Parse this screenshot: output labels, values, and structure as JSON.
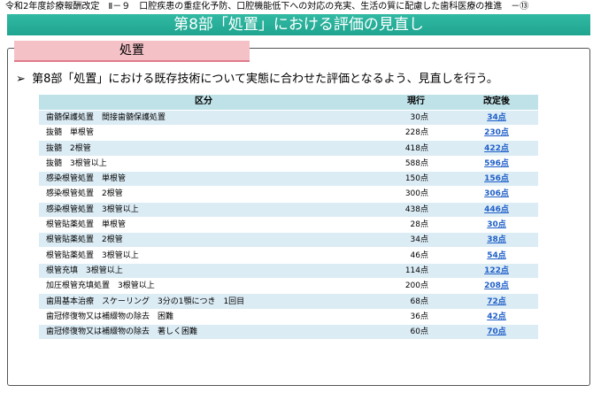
{
  "header": {
    "caption": "令和2年度診療報酬改定　Ⅱ－９　口腔疾患の重症化予防、口腔機能低下への対応の充実、生活の質に配慮した歯科医療の推進　－⑬",
    "title": "第8部「処置」における評価の見直し"
  },
  "section": {
    "label": "処置"
  },
  "lead": {
    "bullet": "➢",
    "text": "第8部「処置」における既存技術について実態に合わせた評価となるよう、見直しを行う。"
  },
  "table": {
    "headers": [
      "区分",
      "現行",
      "改定後"
    ],
    "rows": [
      {
        "name": "歯髄保護処置　間接歯髄保護処置",
        "current": "30点",
        "revised": "34点"
      },
      {
        "name": "抜髄　単根管",
        "current": "228点",
        "revised": "230点"
      },
      {
        "name": "抜髄　2根管",
        "current": "418点",
        "revised": "422点"
      },
      {
        "name": "抜髄　3根管以上",
        "current": "588点",
        "revised": "596点"
      },
      {
        "name": "感染根管処置　単根管",
        "current": "150点",
        "revised": "156点"
      },
      {
        "name": "感染根管処置　2根管",
        "current": "300点",
        "revised": "306点"
      },
      {
        "name": "感染根管処置　3根管以上",
        "current": "438点",
        "revised": "446点"
      },
      {
        "name": "根管貼薬処置　単根管",
        "current": "28点",
        "revised": "30点"
      },
      {
        "name": "根管貼薬処置　2根管",
        "current": "34点",
        "revised": "38点"
      },
      {
        "name": "根管貼薬処置　3根管以上",
        "current": "46点",
        "revised": "54点"
      },
      {
        "name": "根管充填　3根管以上",
        "current": "114点",
        "revised": "122点"
      },
      {
        "name": "加圧根管充填処置　3根管以上",
        "current": "200点",
        "revised": "208点"
      },
      {
        "name": "歯周基本治療　スケーリング　3分の1顎につき　1回目",
        "current": "68点",
        "revised": "72点"
      },
      {
        "name": "歯冠修復物又は補綴物の除去　困難",
        "current": "36点",
        "revised": "42点"
      },
      {
        "name": "歯冠修復物又は補綴物の除去　著しく困難",
        "current": "60点",
        "revised": "70点"
      }
    ]
  },
  "colors": {
    "title_bar": "#1fa58f",
    "section_tab": "#f4c1c7",
    "table_header": "#bfe2e8",
    "row_stripe": "#dcecf5",
    "revised_text": "#1f5fc8"
  }
}
